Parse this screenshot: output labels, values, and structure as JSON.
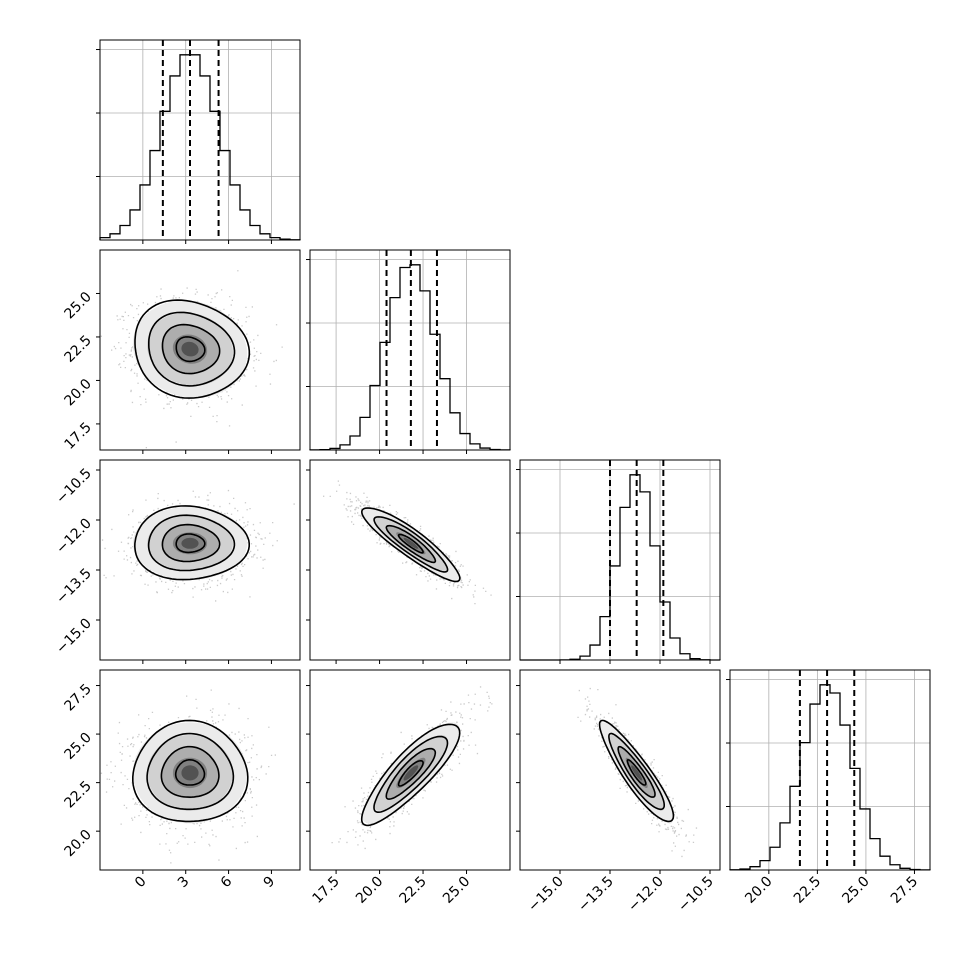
{
  "chart_data": {
    "type": "corner",
    "n_params": 4,
    "params": [
      {
        "index": 0,
        "mean": 3.3,
        "std": 2.0,
        "range": [
          -3,
          11
        ],
        "ticks": [
          0,
          3,
          6,
          9
        ],
        "tick_labels": [
          "0",
          "3",
          "6",
          "9"
        ],
        "quantiles": [
          1.4,
          3.3,
          5.3
        ]
      },
      {
        "index": 1,
        "mean": 21.8,
        "std": 1.4,
        "range": [
          16,
          27.5
        ],
        "ticks": [
          17.5,
          20.0,
          22.5,
          25.0
        ],
        "tick_labels": [
          "17.5",
          "20.0",
          "22.5",
          "25.0"
        ],
        "quantiles": [
          20.4,
          21.8,
          23.3
        ]
      },
      {
        "index": 2,
        "mean": -12.7,
        "std": 0.55,
        "range": [
          -16.2,
          -10.2
        ],
        "ticks": [
          -15.0,
          -13.5,
          -12.0,
          -10.5
        ],
        "tick_labels": [
          "−15.0",
          "−13.5",
          "−12.0",
          "−10.5"
        ],
        "quantiles": [
          -13.5,
          -12.7,
          -11.9
        ]
      },
      {
        "index": 3,
        "mean": 23.0,
        "std": 1.3,
        "range": [
          18,
          28.3
        ],
        "ticks": [
          20.0,
          22.5,
          25.0,
          27.5
        ],
        "tick_labels": [
          "20.0",
          "22.5",
          "25.0",
          "27.5"
        ],
        "quantiles": [
          21.6,
          23.0,
          24.4
        ]
      }
    ],
    "correlations": [
      [
        1.0,
        -0.1,
        0.0,
        0.0
      ],
      [
        -0.1,
        1.0,
        -0.9,
        0.85
      ],
      [
        0.0,
        -0.9,
        1.0,
        -0.9
      ],
      [
        0.0,
        0.85,
        -0.9,
        1.0
      ]
    ],
    "contour_levels_sigma": [
      0.5,
      1.0,
      1.5,
      2.0
    ],
    "hist_bins": 20,
    "histogram_y_ticks": 3,
    "grid": true,
    "colors": {
      "line": "#000000",
      "scatter": "#b4b4b4",
      "grid": "#b0b0b0"
    }
  }
}
